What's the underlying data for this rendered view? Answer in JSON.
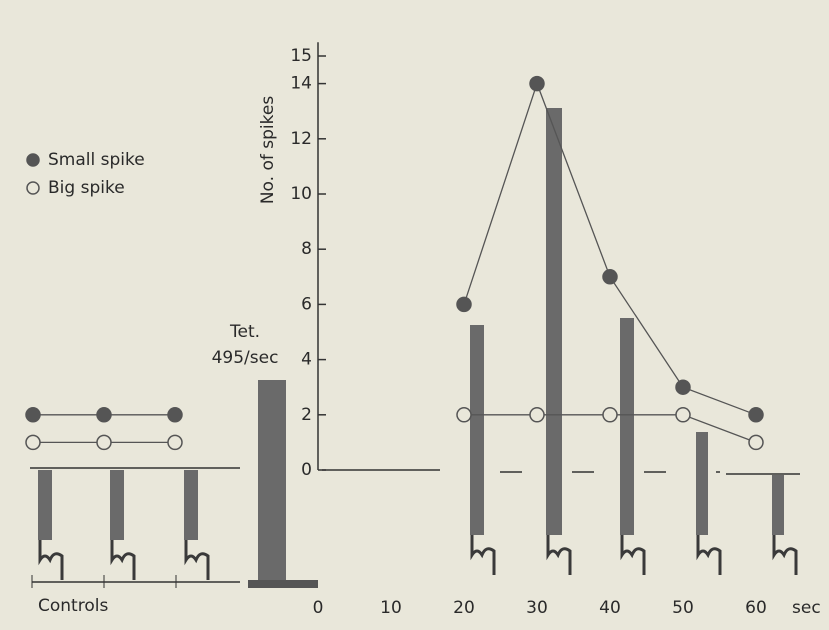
{
  "chart_data": {
    "type": "line",
    "y_label": "No. of spikes",
    "x_unit": "sec",
    "annotation": [
      "Tet.",
      "495/sec"
    ],
    "controls_label": "Controls",
    "x": [
      20,
      30,
      40,
      50,
      60
    ],
    "series": [
      {
        "name": "Small spike",
        "color": "#555555",
        "marker": "filled",
        "values": [
          6,
          14,
          7,
          3,
          2
        ],
        "controls": [
          2,
          2,
          2
        ]
      },
      {
        "name": "Big spike",
        "color": "#555555",
        "marker": "open",
        "values": [
          2,
          2,
          2,
          2,
          1
        ],
        "controls": [
          1,
          1,
          1
        ]
      }
    ],
    "xlim": [
      0,
      65
    ],
    "xticks": [
      0,
      10,
      20,
      30,
      40,
      50,
      60
    ],
    "ylim": [
      0,
      15.5
    ],
    "yticks": [
      0,
      2,
      4,
      6,
      8,
      10,
      12,
      14,
      15
    ]
  }
}
